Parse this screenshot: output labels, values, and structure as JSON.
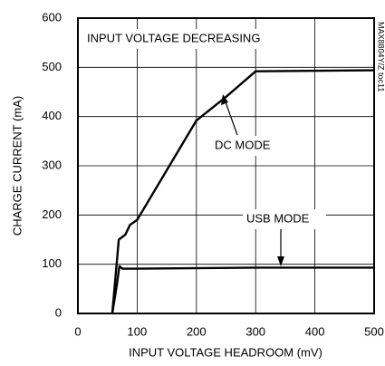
{
  "chart_data": {
    "type": "line",
    "xlabel": "INPUT VOLTAGE HEADROOM (mV)",
    "ylabel": "CHARGE CURRENT (mA)",
    "annotations": [
      "INPUT VOLTAGE DECREASING",
      "DC MODE",
      "USB MODE",
      "MAX8804Y/Z toc11"
    ],
    "series": [
      {
        "name": "DC MODE",
        "color": "#000000",
        "x": [
          58,
          69,
          80,
          88,
          100,
          200,
          250,
          300,
          500
        ],
        "values": [
          0,
          150,
          160,
          180,
          190,
          392,
          440,
          492,
          494
        ]
      },
      {
        "name": "USB MODE",
        "color": "#000000",
        "x": [
          58,
          66,
          70,
          75,
          100,
          300,
          500
        ],
        "values": [
          0,
          60,
          96,
          91,
          91,
          93,
          93
        ]
      }
    ],
    "xlim": [
      0,
      500
    ],
    "xticks": [
      0,
      100,
      200,
      300,
      400,
      500
    ],
    "ylim": [
      0,
      600
    ],
    "yticks": [
      0,
      100,
      200,
      300,
      400,
      500,
      600
    ],
    "grid": true
  }
}
